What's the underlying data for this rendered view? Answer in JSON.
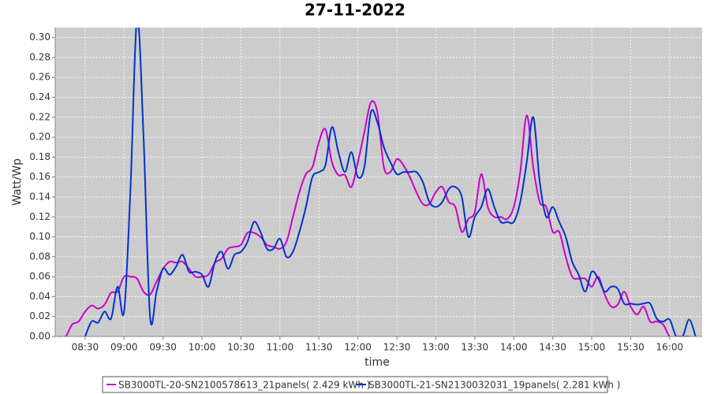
{
  "chart_data": {
    "type": "line",
    "title": "27-11-2022",
    "x_label": "time",
    "y_label": "Watt/Wp",
    "x": [
      "08:10",
      "08:15",
      "08:20",
      "08:25",
      "08:30",
      "08:35",
      "08:40",
      "08:45",
      "08:50",
      "08:55",
      "09:00",
      "09:05",
      "09:10",
      "09:15",
      "09:20",
      "09:25",
      "09:30",
      "09:35",
      "09:40",
      "09:45",
      "09:50",
      "09:55",
      "10:00",
      "10:05",
      "10:10",
      "10:15",
      "10:20",
      "10:25",
      "10:30",
      "10:35",
      "10:40",
      "10:45",
      "10:50",
      "10:55",
      "11:00",
      "11:05",
      "11:10",
      "11:15",
      "11:20",
      "11:25",
      "11:30",
      "11:35",
      "11:40",
      "11:45",
      "11:50",
      "11:55",
      "12:00",
      "12:05",
      "12:10",
      "12:15",
      "12:20",
      "12:25",
      "12:30",
      "12:35",
      "12:40",
      "12:45",
      "12:50",
      "12:55",
      "13:00",
      "13:05",
      "13:10",
      "13:15",
      "13:20",
      "13:25",
      "13:30",
      "13:35",
      "13:40",
      "13:45",
      "13:50",
      "13:55",
      "14:00",
      "14:05",
      "14:10",
      "14:15",
      "14:20",
      "14:25",
      "14:30",
      "14:35",
      "14:40",
      "14:45",
      "14:50",
      "14:55",
      "15:00",
      "15:05",
      "15:10",
      "15:15",
      "15:20",
      "15:25",
      "15:30",
      "15:35",
      "15:40",
      "15:45",
      "15:50",
      "15:55",
      "16:00",
      "16:05",
      "16:10",
      "16:15",
      "16:20"
    ],
    "series": [
      {
        "name": "SB3000TL-20-SN2100578613_21panels( 2.429 kWh )",
        "color": "#cc00cc",
        "values": [
          0,
          0,
          0.012,
          0.015,
          0.025,
          0.031,
          0.028,
          0.032,
          0.044,
          0.045,
          0.06,
          0.06,
          0.058,
          0.045,
          0.042,
          0.055,
          0.068,
          0.075,
          0.074,
          0.075,
          0.068,
          0.06,
          0.06,
          0.062,
          0.074,
          0.078,
          0.088,
          0.09,
          0.092,
          0.104,
          0.104,
          0.1,
          0.092,
          0.09,
          0.088,
          0.095,
          0.12,
          0.145,
          0.163,
          0.17,
          0.195,
          0.208,
          0.175,
          0.162,
          0.162,
          0.15,
          0.175,
          0.205,
          0.235,
          0.225,
          0.17,
          0.165,
          0.178,
          0.172,
          0.16,
          0.145,
          0.133,
          0.133,
          0.145,
          0.15,
          0.135,
          0.13,
          0.105,
          0.118,
          0.125,
          0.163,
          0.13,
          0.12,
          0.12,
          0.118,
          0.13,
          0.165,
          0.222,
          0.17,
          0.135,
          0.13,
          0.105,
          0.105,
          0.08,
          0.06,
          0.058,
          0.058,
          0.05,
          0.06,
          0.042,
          0.03,
          0.032,
          0.045,
          0.03,
          0.022,
          0.03,
          0.015,
          0.015,
          0.012,
          0,
          0,
          0,
          0,
          null
        ]
      },
      {
        "name": "SB3000TL-21-SN2130032031_19panels( 2.281 kWh )",
        "color": "#0033cc",
        "values": [
          null,
          null,
          null,
          null,
          0,
          0.015,
          0.014,
          0.025,
          0.018,
          0.05,
          0.025,
          0.15,
          0.32,
          0.2,
          0.02,
          0.045,
          0.068,
          0.062,
          0.07,
          0.082,
          0.065,
          0.065,
          0.062,
          0.05,
          0.075,
          0.085,
          0.068,
          0.082,
          0.085,
          0.095,
          0.115,
          0.105,
          0.088,
          0.088,
          0.098,
          0.08,
          0.085,
          0.105,
          0.13,
          0.16,
          0.165,
          0.172,
          0.21,
          0.185,
          0.165,
          0.185,
          0.16,
          0.17,
          0.225,
          0.215,
          0.19,
          0.175,
          0.163,
          0.165,
          0.165,
          0.165,
          0.155,
          0.135,
          0.13,
          0.135,
          0.148,
          0.15,
          0.14,
          0.1,
          0.12,
          0.13,
          0.148,
          0.13,
          0.115,
          0.115,
          0.115,
          0.135,
          0.175,
          0.22,
          0.155,
          0.12,
          0.13,
          0.115,
          0.1,
          0.075,
          0.062,
          0.045,
          0.065,
          0.058,
          0.045,
          0.05,
          0.048,
          0.033,
          0.033,
          0.032,
          0.033,
          0.033,
          0.018,
          0.015,
          0.017,
          0,
          0,
          0.017,
          0
        ]
      }
    ],
    "xlim": [
      "08:07",
      "16:25"
    ],
    "xticks": [
      "08:30",
      "09:00",
      "09:30",
      "10:00",
      "10:30",
      "11:00",
      "11:30",
      "12:00",
      "12:30",
      "13:00",
      "13:30",
      "14:00",
      "14:30",
      "15:00",
      "15:30",
      "16:00"
    ],
    "ylim": [
      0,
      0.31
    ],
    "yticks": [
      {
        "value": 0,
        "label": "0.00"
      },
      {
        "value": 0.02,
        "label": "0.02"
      },
      {
        "value": 0.04,
        "label": "0.04"
      },
      {
        "value": 0.06,
        "label": "0.06"
      },
      {
        "value": 0.08,
        "label": "0.08"
      },
      {
        "value": 0.1,
        "label": "0.10"
      },
      {
        "value": 0.12,
        "label": "0.12"
      },
      {
        "value": 0.14,
        "label": "0.14"
      },
      {
        "value": 0.16,
        "label": "0.16"
      },
      {
        "value": 0.18,
        "label": "0.18"
      },
      {
        "value": 0.2,
        "label": "0.20"
      },
      {
        "value": 0.22,
        "label": "0.22"
      },
      {
        "value": 0.24,
        "label": "0.24"
      },
      {
        "value": 0.26,
        "label": "0.26"
      },
      {
        "value": 0.28,
        "label": "0.28"
      },
      {
        "value": 0.3,
        "label": "0.30"
      }
    ],
    "grid": true,
    "legend": "bottom"
  }
}
